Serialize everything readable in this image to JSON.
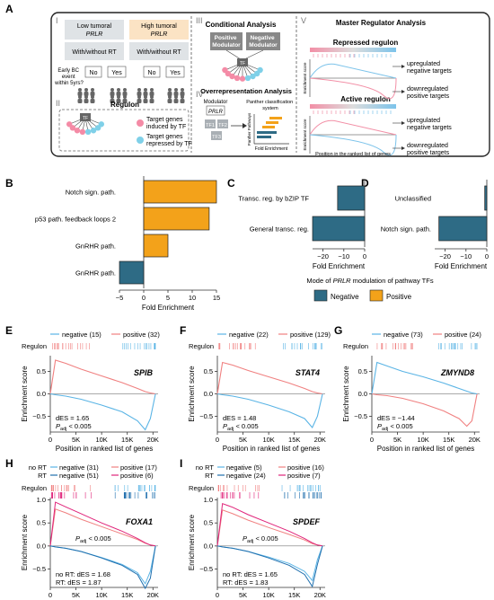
{
  "panels": {
    "A": "A",
    "B": "B",
    "C": "C",
    "D": "D",
    "E": "E",
    "F": "F",
    "G": "G",
    "H": "H",
    "I": "I"
  },
  "schema": {
    "roman": {
      "i": "I",
      "ii": "II",
      "iii": "III",
      "iv": "IV",
      "v": "V"
    },
    "groups": {
      "low_line1": "Low tumoral",
      "low_line2": "PRLR",
      "high_line1": "High tumoral",
      "high_line2": "PRLR",
      "rt": "With/without RT",
      "event_q": [
        "Early BC",
        "event",
        "within 5yrs?"
      ],
      "no": "No",
      "yes": "Yes"
    },
    "regulon": {
      "title": "Regulon",
      "induced": [
        "Target genes",
        "induced by TF"
      ],
      "repressed": [
        "Target genes",
        "repressed by TF"
      ],
      "tf": "TF"
    },
    "conditional": {
      "title": "Conditional Analysis",
      "pos": [
        "Positive",
        "Modulator"
      ],
      "neg": [
        "Negative",
        "Modulator"
      ],
      "tf": "TF"
    },
    "overrep": {
      "title": "Overrepresentation Analysis",
      "modulator": "Modulator",
      "prlr": "PRLR",
      "tf1": "TF1",
      "tf2": "TF2",
      "tf3": "TF3",
      "panther": [
        "Panther classification",
        "system"
      ],
      "yaxis": "Panther Pathways",
      "xaxis": "Fold Enrichment"
    },
    "mra": {
      "title": "Master Regulator Analysis",
      "repressed": "Repressed regulon",
      "active": "Active regulon",
      "up": [
        "upregulated",
        "negative targets"
      ],
      "down": [
        "downregulated",
        "positive targets"
      ],
      "ylab": "Enrichment score",
      "xlab": "Position in the ranked list of genes"
    }
  },
  "bar_charts": {
    "legend_title_pre": "Mode of ",
    "legend_title_em": "PRLR",
    "legend_title_post": " modulation of pathway TFs",
    "legend": [
      {
        "label": "Negative",
        "color": "#2e6b85"
      },
      {
        "label": "Positive",
        "color": "#f3a21a"
      }
    ]
  },
  "gsea": {
    "ylabel": "Enrichment score",
    "xlabel": "Position in ranked list of genes",
    "regulon": "Regulon",
    "neg_color": "#5ab4e5",
    "pos_color": "#f08080",
    "no_rt": "no RT",
    "rt": "RT",
    "padj": "< 0.005"
  },
  "chart_data": [
    {
      "panel": "B",
      "type": "bar",
      "orientation": "horizontal",
      "categories": [
        "Notch sign. path.",
        "p53 path. feedback loops 2",
        "GnRHR path.",
        "GnRHR path."
      ],
      "values": [
        15.0,
        13.5,
        5.0,
        -5.0
      ],
      "colors": [
        "#f3a21a",
        "#f3a21a",
        "#f3a21a",
        "#2e6b85"
      ],
      "xlabel": "Fold Enrichment",
      "xlim": [
        -5,
        15
      ],
      "xticks": [
        -5,
        0,
        5,
        10,
        15
      ]
    },
    {
      "panel": "C",
      "type": "bar",
      "orientation": "horizontal",
      "categories": [
        "Transc. reg. by bZIP TF",
        "General transc. reg."
      ],
      "values": [
        -13.0,
        -25.0
      ],
      "colors": [
        "#2e6b85",
        "#2e6b85"
      ],
      "xlabel": "Fold Enrichment",
      "xlim": [
        -25,
        0
      ],
      "xticks": [
        -20,
        -10,
        0
      ]
    },
    {
      "panel": "D",
      "type": "bar",
      "orientation": "horizontal",
      "categories": [
        "Unclassified",
        "Notch sign. path."
      ],
      "values": [
        -1.0,
        -23.0
      ],
      "colors": [
        "#2e6b85",
        "#2e6b85"
      ],
      "xlabel": "Fold Enrichment",
      "xlim": [
        -25,
        0
      ],
      "xticks": [
        -20,
        -10,
        0
      ]
    },
    {
      "panel": "E",
      "type": "line",
      "gene": "SPIB",
      "neg_n": "negative (15)",
      "pos_n": "positive (32)",
      "des": "dES = 1.65",
      "x": [
        0,
        1000,
        3000,
        6000,
        10000,
        14000,
        17000,
        18500,
        19500,
        20500
      ],
      "pos": [
        0,
        0.75,
        0.68,
        0.55,
        0.4,
        0.25,
        0.12,
        0.05,
        0.02,
        0
      ],
      "neg": [
        0,
        -0.02,
        -0.05,
        -0.12,
        -0.25,
        -0.4,
        -0.6,
        -0.8,
        -0.55,
        0
      ],
      "xticks": [
        "0",
        "5K",
        "10K",
        "15K",
        "20K"
      ],
      "yticks": [
        "-0.5",
        "0.0",
        "0.5"
      ]
    },
    {
      "panel": "F",
      "type": "line",
      "gene": "STAT4",
      "neg_n": "negative (22)",
      "pos_n": "positive (129)",
      "des": "dES = 1.48",
      "x": [
        0,
        1000,
        3000,
        6000,
        10000,
        14000,
        17000,
        18500,
        19500,
        20500
      ],
      "pos": [
        0,
        0.7,
        0.64,
        0.52,
        0.38,
        0.24,
        0.12,
        0.05,
        0.02,
        0
      ],
      "neg": [
        0,
        -0.02,
        -0.05,
        -0.12,
        -0.25,
        -0.4,
        -0.55,
        -0.75,
        -0.5,
        0
      ],
      "xticks": [
        "0",
        "5K",
        "10K",
        "15K",
        "20K"
      ],
      "yticks": [
        "-0.5",
        "0.0",
        "0.5"
      ]
    },
    {
      "panel": "G",
      "type": "line",
      "gene": "ZMYND8",
      "neg_n": "negative (73)",
      "pos_n": "positive (24)",
      "des": "dES = −1.44",
      "x": [
        0,
        1000,
        3000,
        6000,
        10000,
        14000,
        17000,
        18500,
        19500,
        20500
      ],
      "neg": [
        0,
        0.7,
        0.62,
        0.5,
        0.38,
        0.24,
        0.12,
        0.06,
        0.02,
        0
      ],
      "pos": [
        0,
        -0.02,
        -0.04,
        -0.1,
        -0.22,
        -0.38,
        -0.55,
        -0.72,
        -0.6,
        0
      ],
      "xticks": [
        "0",
        "5K",
        "10K",
        "15K",
        "20K"
      ],
      "yticks": [
        "-0.5",
        "0.0",
        "0.5"
      ]
    },
    {
      "panel": "H",
      "type": "line",
      "gene": "FOXA1",
      "legend": [
        {
          "group": "no RT",
          "neg": "negative (31)",
          "pos": "positive (17)"
        },
        {
          "group": "RT",
          "neg": "negative (51)",
          "pos": "positive (6)"
        }
      ],
      "des_nort": "no RT: dES = 1.68",
      "des_rt": "RT: dES = 1.87",
      "x": [
        0,
        1000,
        3000,
        6000,
        10000,
        14000,
        17000,
        18500,
        19500,
        20500
      ],
      "pos_nort": [
        0,
        0.8,
        0.72,
        0.58,
        0.42,
        0.26,
        0.14,
        0.06,
        0.02,
        0
      ],
      "pos_rt": [
        0,
        0.95,
        0.85,
        0.7,
        0.5,
        0.32,
        0.16,
        0.07,
        0.02,
        0
      ],
      "neg_nort": [
        0,
        -0.02,
        -0.05,
        -0.12,
        -0.25,
        -0.4,
        -0.58,
        -0.82,
        -0.55,
        0
      ],
      "neg_rt": [
        0,
        -0.02,
        -0.05,
        -0.12,
        -0.26,
        -0.42,
        -0.62,
        -0.92,
        -0.7,
        0
      ],
      "xticks": [
        "0",
        "5K",
        "10K",
        "15K",
        "20K"
      ],
      "yticks": [
        "-0.5",
        "0.0",
        "0.5",
        "1.0"
      ]
    },
    {
      "panel": "I",
      "type": "line",
      "gene": "SPDEF",
      "legend": [
        {
          "group": "no RT",
          "neg": "negative (5)",
          "pos": "positive (16)"
        },
        {
          "group": "RT",
          "neg": "negative (24)",
          "pos": "positive (7)"
        }
      ],
      "des_nort": "no RT: dES = 1.65",
      "des_rt": "RT: dES = 1.83",
      "x": [
        0,
        1000,
        3000,
        6000,
        10000,
        14000,
        17000,
        18500,
        19500,
        20500
      ],
      "pos_nort": [
        0,
        0.78,
        0.7,
        0.56,
        0.4,
        0.25,
        0.13,
        0.05,
        0.02,
        0
      ],
      "pos_rt": [
        0,
        0.92,
        0.84,
        0.68,
        0.5,
        0.32,
        0.16,
        0.07,
        0.02,
        0
      ],
      "neg_nort": [
        0,
        -0.02,
        -0.05,
        -0.12,
        -0.24,
        -0.38,
        -0.55,
        -0.75,
        -0.3,
        0
      ],
      "neg_rt": [
        0,
        -0.02,
        -0.05,
        -0.12,
        -0.26,
        -0.42,
        -0.62,
        -0.88,
        -0.4,
        0
      ],
      "xticks": [
        "0",
        "5K",
        "10K",
        "15K",
        "20K"
      ],
      "yticks": [
        "-0.5",
        "0.0",
        "0.5",
        "1.0"
      ]
    }
  ]
}
